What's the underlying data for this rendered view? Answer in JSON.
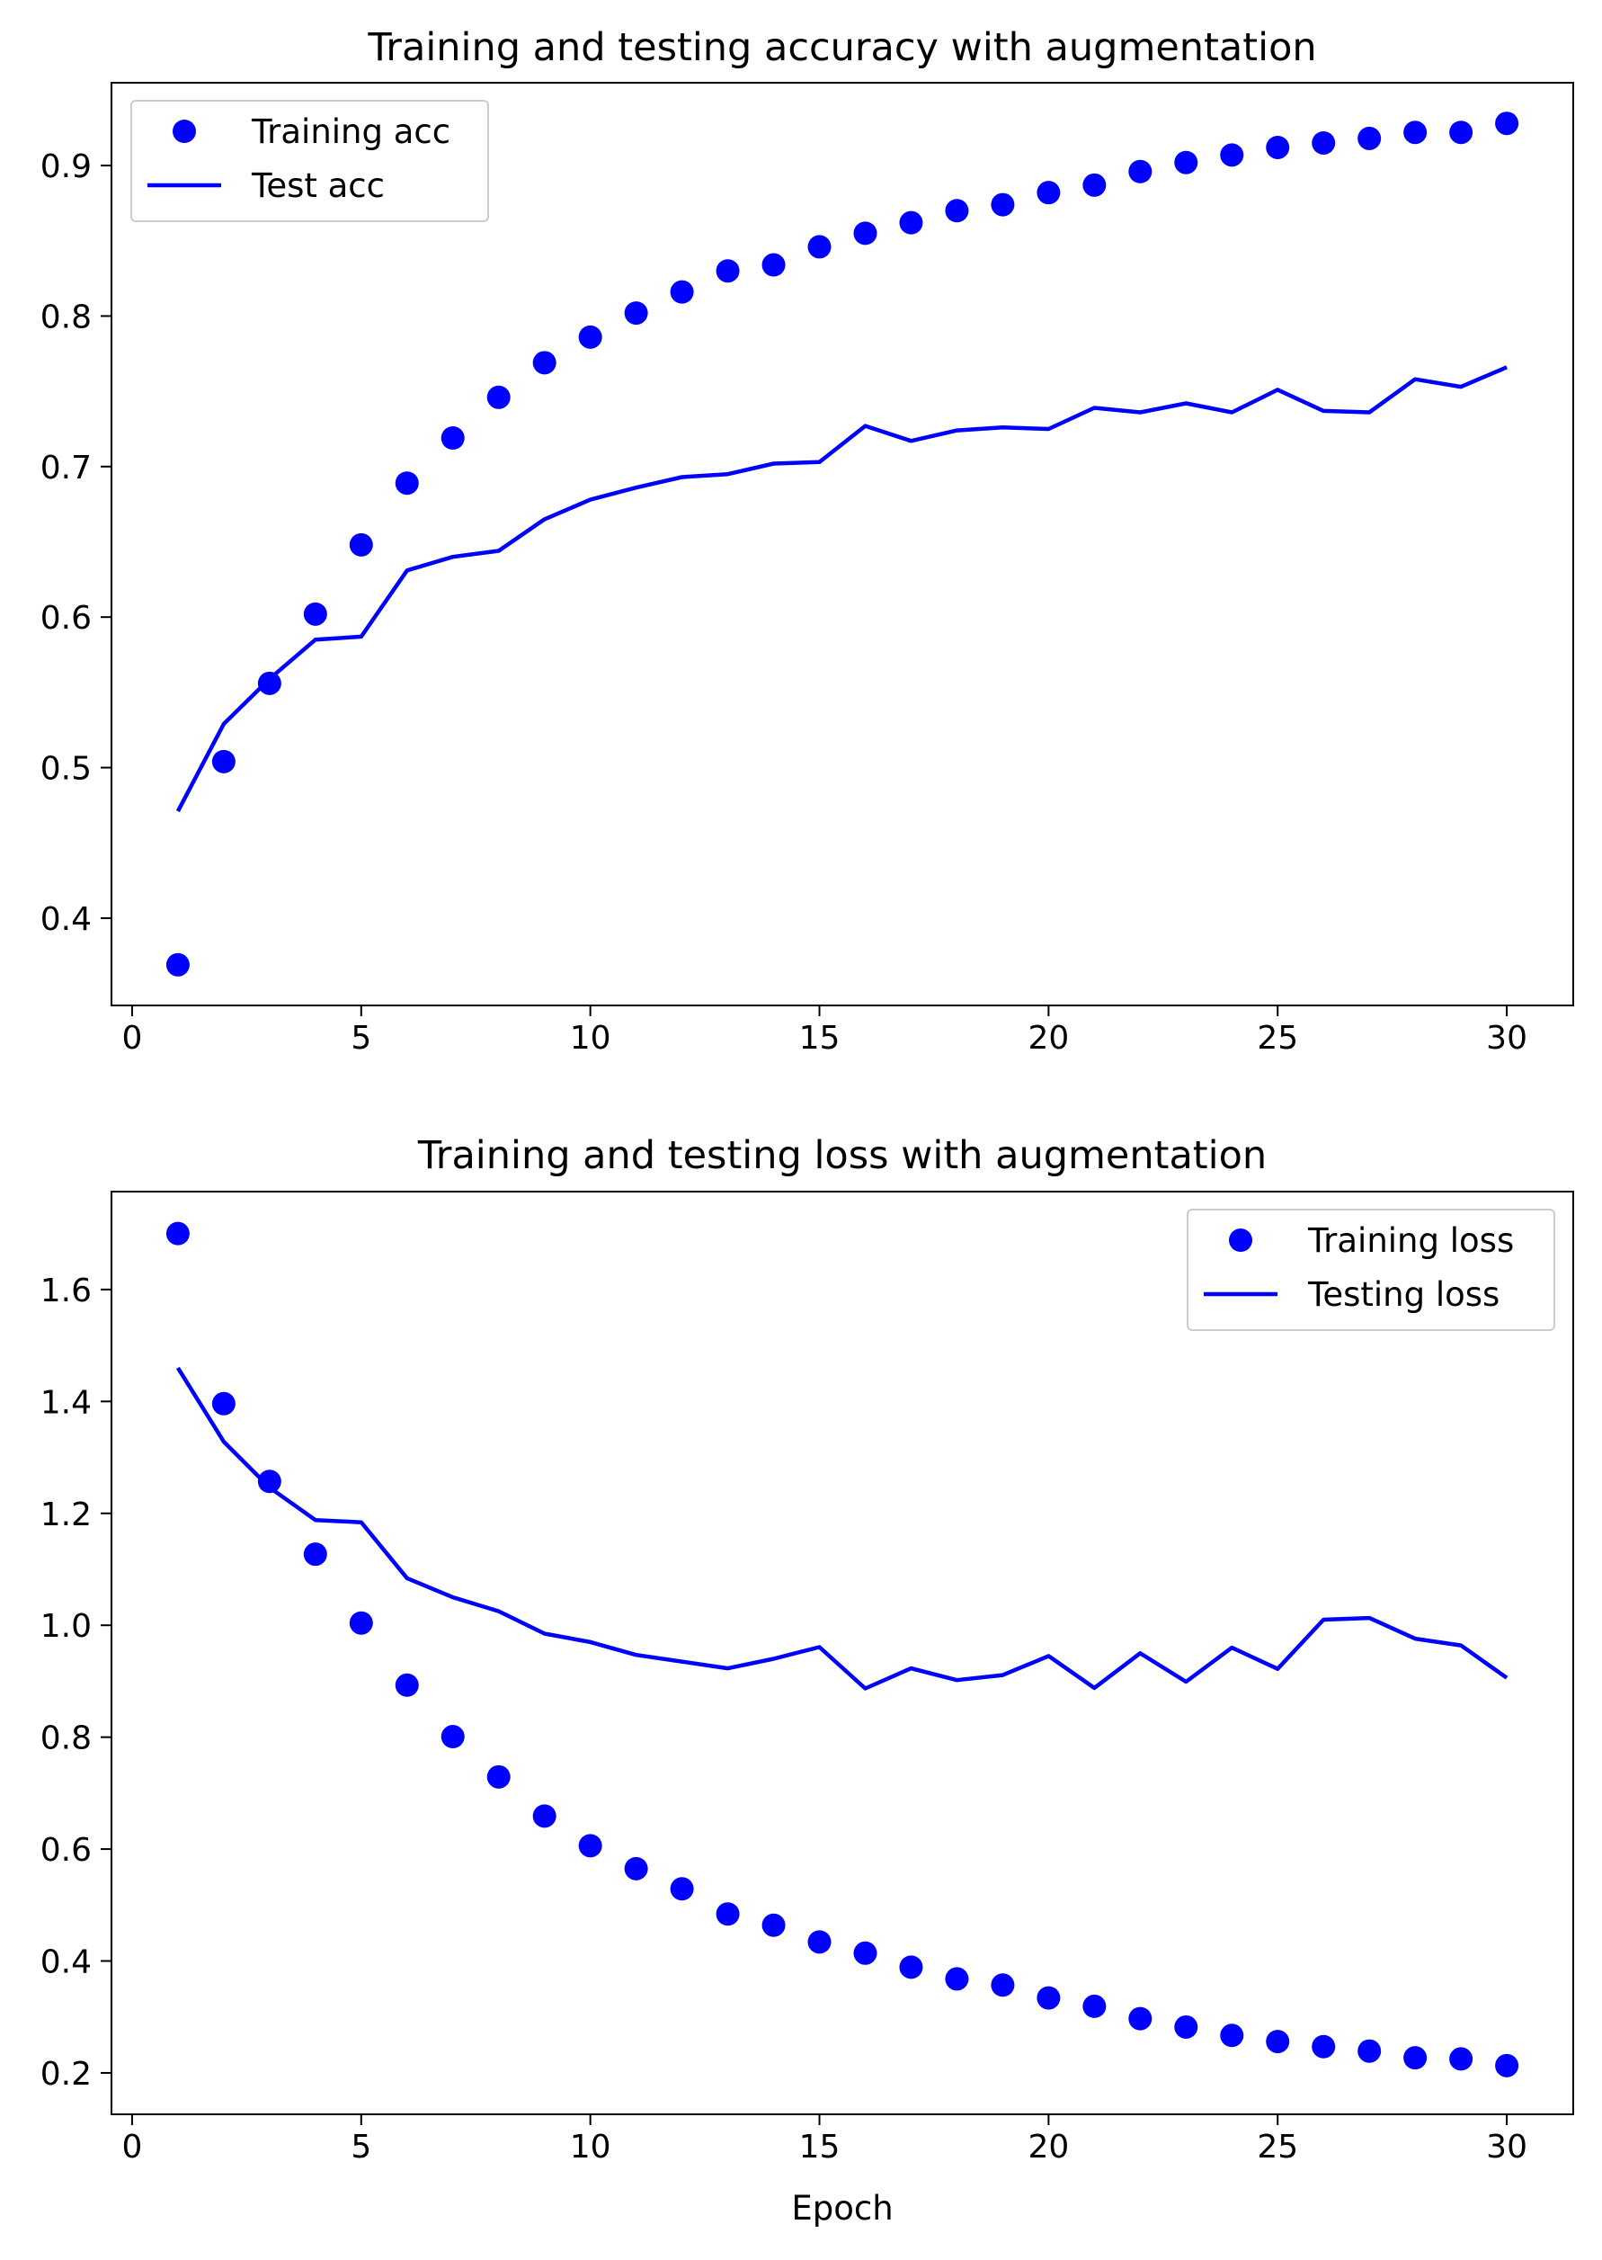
{
  "figure": {
    "background": "#ffffff",
    "series_color": "#0000ff"
  },
  "chart_data": [
    {
      "type": "line",
      "title": "Training and testing accuracy with augmentation",
      "xlabel": "",
      "ylabel": "",
      "xlim": [
        -0.45,
        31.45
      ],
      "ylim": [
        0.342,
        0.955
      ],
      "xticks": [
        0,
        5,
        10,
        15,
        20,
        25,
        30
      ],
      "yticks": [
        0.4,
        0.5,
        0.6,
        0.7,
        0.8,
        0.9
      ],
      "ytick_labels": [
        "0.4",
        "0.5",
        "0.6",
        "0.7",
        "0.8",
        "0.9"
      ],
      "grid": false,
      "legend_position": "upper-left",
      "x": [
        1,
        2,
        3,
        4,
        5,
        6,
        7,
        8,
        9,
        10,
        11,
        12,
        13,
        14,
        15,
        16,
        17,
        18,
        19,
        20,
        21,
        22,
        23,
        24,
        25,
        26,
        27,
        28,
        29,
        30
      ],
      "series": [
        {
          "name": "Training acc",
          "style": "dots",
          "color": "#0000ff",
          "values": [
            0.369,
            0.504,
            0.556,
            0.602,
            0.648,
            0.689,
            0.719,
            0.746,
            0.769,
            0.786,
            0.802,
            0.816,
            0.83,
            0.834,
            0.846,
            0.855,
            0.862,
            0.87,
            0.874,
            0.882,
            0.887,
            0.896,
            0.902,
            0.907,
            0.912,
            0.915,
            0.918,
            0.922,
            0.922,
            0.928
          ]
        },
        {
          "name": "Test acc",
          "style": "line",
          "color": "#0000ff",
          "values": [
            0.471,
            0.529,
            0.559,
            0.585,
            0.587,
            0.631,
            0.64,
            0.644,
            0.665,
            0.678,
            0.686,
            0.693,
            0.695,
            0.702,
            0.703,
            0.727,
            0.717,
            0.724,
            0.726,
            0.725,
            0.739,
            0.736,
            0.742,
            0.736,
            0.751,
            0.737,
            0.736,
            0.758,
            0.753,
            0.766
          ]
        }
      ]
    },
    {
      "type": "line",
      "title": "Training and testing loss with augmentation",
      "xlabel": "Epoch",
      "ylabel": "",
      "xlim": [
        -0.45,
        31.45
      ],
      "ylim": [
        0.126,
        1.775
      ],
      "xticks": [
        0,
        5,
        10,
        15,
        20,
        25,
        30
      ],
      "yticks": [
        0.2,
        0.4,
        0.6,
        0.8,
        1.0,
        1.2,
        1.4,
        1.6
      ],
      "ytick_labels": [
        "0.2",
        "0.4",
        "0.6",
        "0.8",
        "1.0",
        "1.2",
        "1.4",
        "1.6"
      ],
      "grid": false,
      "legend_position": "upper-right",
      "x": [
        1,
        2,
        3,
        4,
        5,
        6,
        7,
        8,
        9,
        10,
        11,
        12,
        13,
        14,
        15,
        16,
        17,
        18,
        19,
        20,
        21,
        22,
        23,
        24,
        25,
        26,
        27,
        28,
        29,
        30
      ],
      "series": [
        {
          "name": "Training loss",
          "style": "dots",
          "color": "#0000ff",
          "values": [
            1.7,
            1.396,
            1.257,
            1.127,
            1.004,
            0.893,
            0.801,
            0.729,
            0.659,
            0.606,
            0.565,
            0.529,
            0.484,
            0.464,
            0.434,
            0.414,
            0.389,
            0.368,
            0.357,
            0.334,
            0.319,
            0.297,
            0.282,
            0.267,
            0.256,
            0.247,
            0.239,
            0.227,
            0.225,
            0.213
          ]
        },
        {
          "name": "Testing loss",
          "style": "line",
          "color": "#0000ff",
          "values": [
            1.46,
            1.328,
            1.246,
            1.188,
            1.184,
            1.084,
            1.05,
            1.025,
            0.985,
            0.97,
            0.947,
            0.935,
            0.923,
            0.94,
            0.961,
            0.887,
            0.923,
            0.902,
            0.911,
            0.945,
            0.888,
            0.95,
            0.899,
            0.96,
            0.922,
            1.01,
            1.013,
            0.976,
            0.964,
            0.906
          ]
        }
      ]
    }
  ]
}
